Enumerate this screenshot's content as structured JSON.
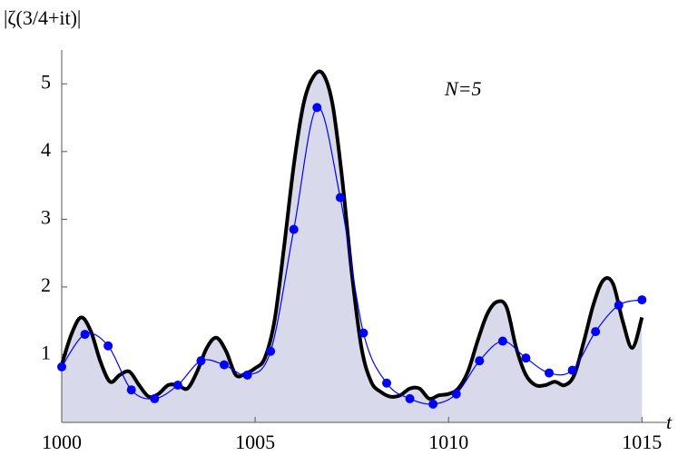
{
  "chart_data": {
    "type": "line",
    "y_label": "|ζ(3/4+it)|",
    "x_label": "t",
    "annotation": "N=5",
    "xlim": [
      1000,
      1015.65
    ],
    "ylim": [
      0,
      5.5
    ],
    "xticks": [
      1000,
      1005,
      1010,
      1015
    ],
    "yticks": [
      1,
      2,
      3,
      4,
      5
    ],
    "fill_color": "#d9d9ec",
    "series": [
      {
        "color": "#000000",
        "filled": true,
        "markers": false,
        "x": [
          1000,
          1000.25,
          1000.5,
          1000.75,
          1001,
          1001.25,
          1001.5,
          1001.75,
          1002,
          1002.25,
          1002.5,
          1002.75,
          1003,
          1003.25,
          1003.5,
          1003.75,
          1004,
          1004.25,
          1004.5,
          1004.75,
          1005,
          1005.25,
          1005.5,
          1005.75,
          1006,
          1006.25,
          1006.5,
          1006.75,
          1007,
          1007.25,
          1007.5,
          1007.75,
          1008,
          1008.25,
          1008.5,
          1008.75,
          1009,
          1009.25,
          1009.5,
          1009.75,
          1010,
          1010.25,
          1010.5,
          1010.75,
          1011,
          1011.25,
          1011.5,
          1011.75,
          1012,
          1012.25,
          1012.5,
          1012.75,
          1013,
          1013.25,
          1013.5,
          1013.75,
          1014,
          1014.25,
          1014.5,
          1014.75,
          1015
        ],
        "values": [
          0.85,
          1.3,
          1.55,
          1.35,
          0.9,
          0.6,
          0.7,
          0.75,
          0.55,
          0.38,
          0.42,
          0.55,
          0.55,
          0.5,
          0.75,
          1.1,
          1.25,
          1.05,
          0.7,
          0.72,
          0.8,
          0.95,
          1.5,
          2.6,
          3.8,
          4.7,
          5.1,
          5.15,
          4.7,
          3.6,
          2.2,
          1.1,
          0.6,
          0.45,
          0.38,
          0.4,
          0.5,
          0.5,
          0.35,
          0.4,
          0.42,
          0.5,
          0.75,
          1.2,
          1.6,
          1.78,
          1.7,
          1.1,
          0.7,
          0.55,
          0.55,
          0.6,
          0.55,
          0.7,
          1.2,
          1.75,
          2.1,
          2.05,
          1.5,
          1.1,
          1.55
        ]
      },
      {
        "color": "#0000ff",
        "filled": false,
        "markers": true,
        "x": [
          1000,
          1000.6,
          1001.2,
          1001.8,
          1002.4,
          1003,
          1003.6,
          1004.2,
          1004.8,
          1005.4,
          1006,
          1006.6,
          1007.2,
          1007.8,
          1008.4,
          1009,
          1009.6,
          1010.2,
          1010.8,
          1011.4,
          1012,
          1012.6,
          1013.2,
          1013.8,
          1014.4,
          1015
        ],
        "values": [
          0.82,
          1.3,
          1.13,
          0.48,
          0.35,
          0.55,
          0.91,
          0.85,
          0.7,
          1.05,
          2.85,
          4.65,
          3.32,
          1.32,
          0.58,
          0.35,
          0.27,
          0.42,
          0.91,
          1.2,
          0.95,
          0.73,
          0.77,
          1.34,
          1.73,
          1.81
        ]
      }
    ]
  }
}
